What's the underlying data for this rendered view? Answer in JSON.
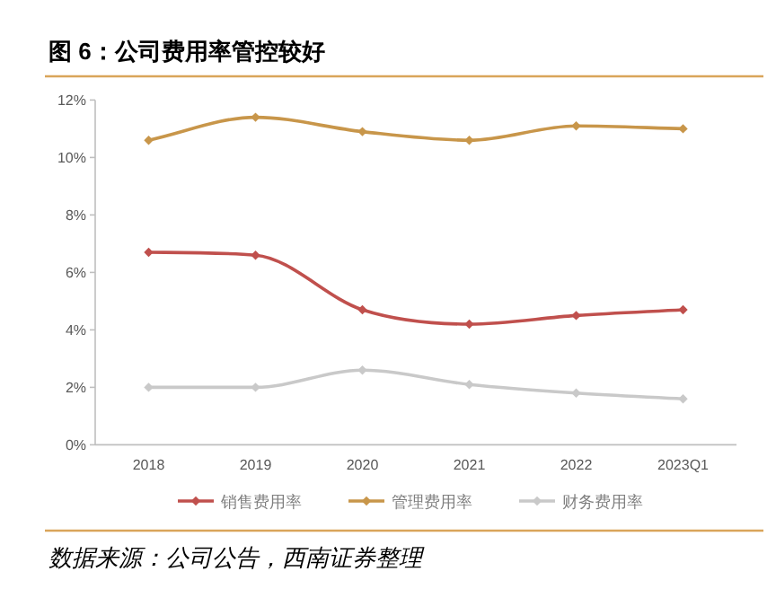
{
  "chart_data": {
    "type": "line",
    "title": "图 6：公司费用率管控较好",
    "categories": [
      "2018",
      "2019",
      "2020",
      "2021",
      "2022",
      "2023Q1"
    ],
    "series": [
      {
        "name": "销售费用率",
        "color": "#c0504d",
        "values": [
          6.7,
          6.6,
          4.7,
          4.2,
          4.5,
          4.7
        ]
      },
      {
        "name": "管理费用率",
        "color": "#c8964a",
        "values": [
          10.6,
          11.4,
          10.9,
          10.6,
          11.1,
          11.0
        ]
      },
      {
        "name": "财务费用率",
        "color": "#c9c9c9",
        "values": [
          2.0,
          2.0,
          2.6,
          2.1,
          1.8,
          1.6
        ]
      }
    ],
    "ylim": [
      0,
      12
    ],
    "yticks": [
      {
        "value": 0,
        "label": "0%"
      },
      {
        "value": 2,
        "label": "2%"
      },
      {
        "value": 4,
        "label": "4%"
      },
      {
        "value": 6,
        "label": "6%"
      },
      {
        "value": 8,
        "label": "8%"
      },
      {
        "value": 10,
        "label": "10%"
      },
      {
        "value": 12,
        "label": "12%"
      }
    ],
    "grid": false,
    "legend": "bottom",
    "marker": "diamond",
    "line_style": "solid",
    "annotations": [
      "数据来源：公司公告，西南证券整理"
    ]
  }
}
